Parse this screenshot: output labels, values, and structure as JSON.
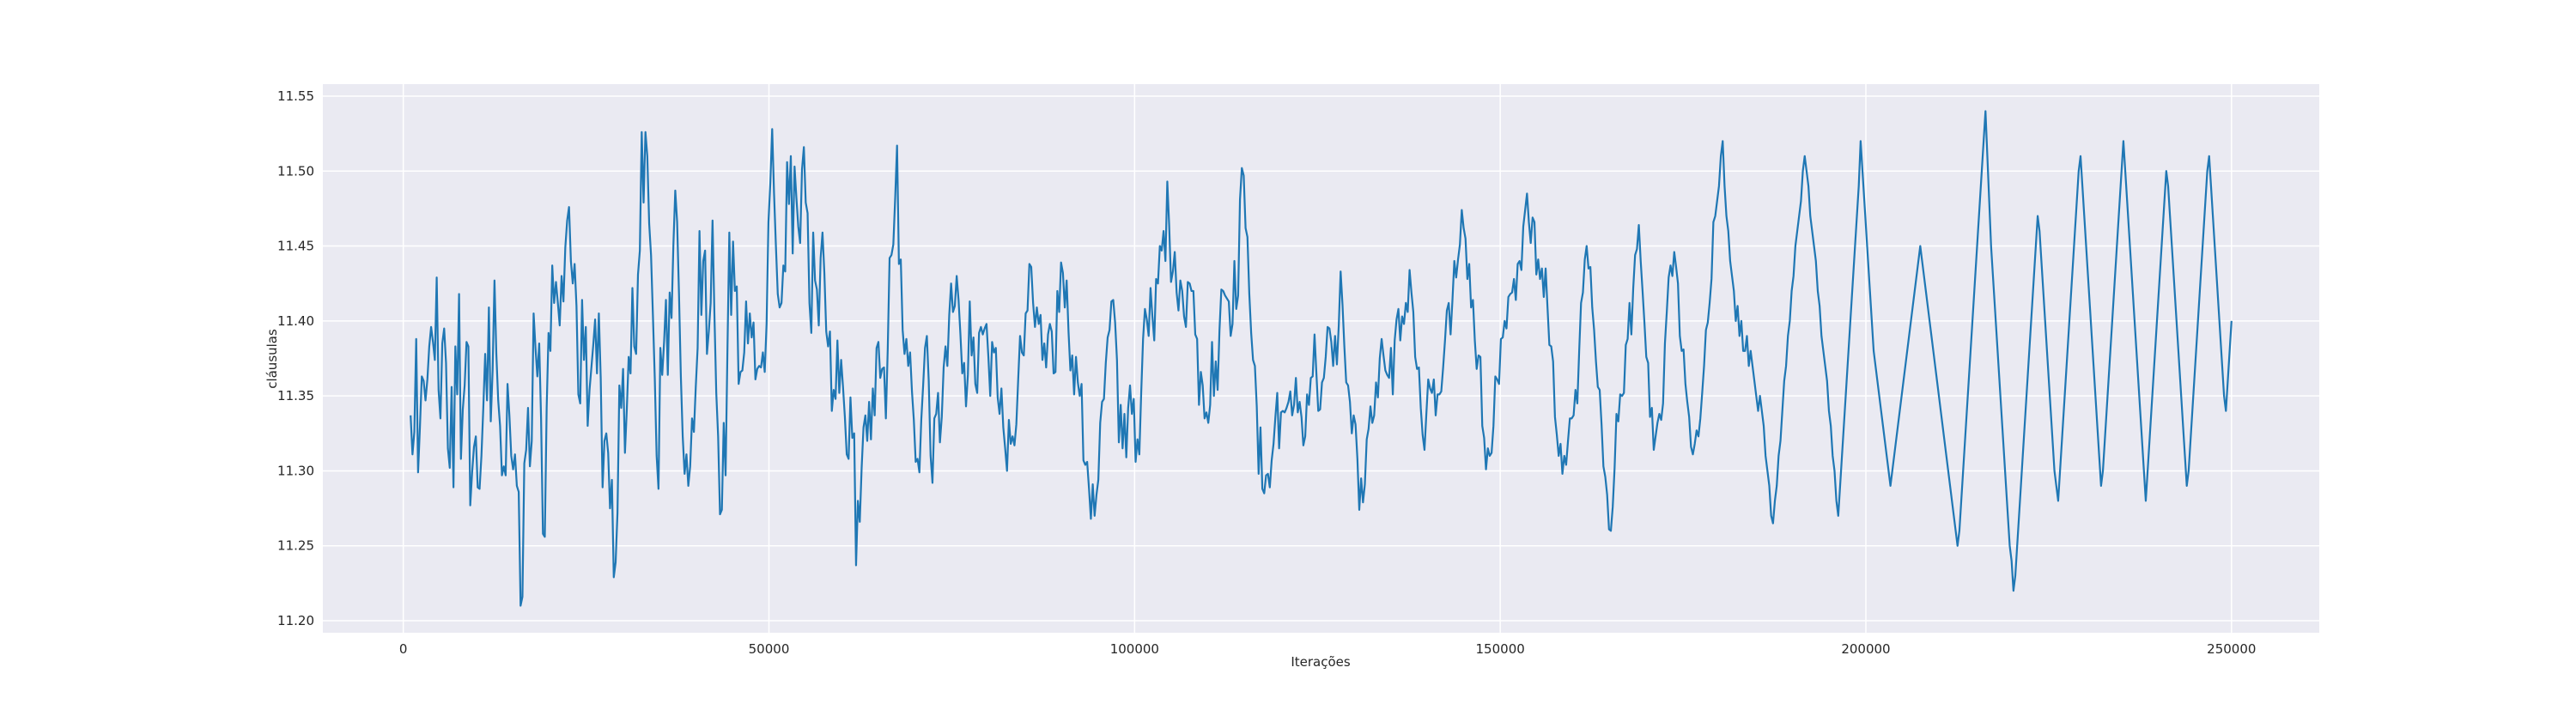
{
  "chart_data": {
    "type": "line",
    "title": "",
    "xlabel": "Iterações",
    "ylabel": "cláusulas",
    "xlim": [
      -11000,
      262000
    ],
    "ylim": [
      11.192,
      11.558
    ],
    "xticks": [
      0,
      50000,
      100000,
      150000,
      200000,
      250000
    ],
    "xtick_labels": [
      "0",
      "50000",
      "100000",
      "150000",
      "200000",
      "250000"
    ],
    "yticks": [
      11.2,
      11.25,
      11.3,
      11.35,
      11.4,
      11.45,
      11.5,
      11.55
    ],
    "ytick_labels": [
      "11.20",
      "11.25",
      "11.30",
      "11.35",
      "11.40",
      "11.45",
      "11.50",
      "11.55"
    ],
    "grid": true,
    "colors": {
      "background": "#eaeaf2",
      "grid": "#ffffff",
      "line": "#1f77b4"
    },
    "series": [
      {
        "x_start": 1000,
        "x_end": 250000,
        "x_step": 500,
        "values": [
          11.337,
          11.311,
          11.326,
          11.388,
          11.299,
          11.329,
          11.363,
          11.36,
          11.347,
          11.361,
          11.383,
          11.396,
          11.386,
          11.374,
          11.429,
          11.354,
          11.335,
          11.385,
          11.395,
          11.372,
          11.315,
          11.302,
          11.356,
          11.289,
          11.383,
          11.351,
          11.418,
          11.308,
          11.341,
          11.357,
          11.386,
          11.383,
          11.277,
          11.299,
          11.316,
          11.323,
          11.289,
          11.288,
          11.31,
          11.342,
          11.378,
          11.347,
          11.409,
          11.333,
          11.367,
          11.427,
          11.378,
          11.347,
          11.33,
          11.297,
          11.303,
          11.297,
          11.358,
          11.337,
          11.31,
          11.301,
          11.311,
          11.29,
          11.286,
          11.21,
          11.216,
          11.305,
          11.314,
          11.342,
          11.303,
          11.32,
          11.405,
          11.382,
          11.363,
          11.385,
          11.335,
          11.258,
          11.256,
          11.342,
          11.392,
          11.38,
          11.437,
          11.412,
          11.426,
          11.412,
          11.397,
          11.43,
          11.413,
          11.449,
          11.467,
          11.476,
          11.44,
          11.425,
          11.438,
          11.41,
          11.351,
          11.345,
          11.414,
          11.374,
          11.396,
          11.33,
          11.354,
          11.369,
          11.384,
          11.401,
          11.365,
          11.405,
          11.362,
          11.289,
          11.32,
          11.325,
          11.312,
          11.275,
          11.294,
          11.229,
          11.239,
          11.272,
          11.357,
          11.342,
          11.368,
          11.312,
          11.341,
          11.376,
          11.365,
          11.422,
          11.383,
          11.378,
          11.431,
          11.447,
          11.526,
          11.479,
          11.526,
          11.51,
          11.465,
          11.444,
          11.404,
          11.362,
          11.31,
          11.288,
          11.382,
          11.364,
          11.386,
          11.414,
          11.364,
          11.419,
          11.402,
          11.451,
          11.487,
          11.466,
          11.418,
          11.363,
          11.323,
          11.298,
          11.311,
          11.29,
          11.303,
          11.335,
          11.326,
          11.356,
          11.382,
          11.46,
          11.404,
          11.44,
          11.447,
          11.378,
          11.393,
          11.412,
          11.467,
          11.405,
          11.352,
          11.323,
          11.271,
          11.274,
          11.332,
          11.297,
          11.381,
          11.459,
          11.404,
          11.453,
          11.42,
          11.423,
          11.358,
          11.366,
          11.367,
          11.379,
          11.413,
          11.385,
          11.405,
          11.389,
          11.399,
          11.361,
          11.368,
          11.37,
          11.369,
          11.379,
          11.366,
          11.398,
          11.466,
          11.492,
          11.528,
          11.485,
          11.45,
          11.418,
          11.409,
          11.412,
          11.437,
          11.433,
          11.506,
          11.478,
          11.51,
          11.445,
          11.503,
          11.482,
          11.463,
          11.452,
          11.501,
          11.516,
          11.479,
          11.472,
          11.412,
          11.392,
          11.459,
          11.427,
          11.421,
          11.397,
          11.442,
          11.459,
          11.432,
          11.393,
          11.383,
          11.393,
          11.34,
          11.354,
          11.348,
          11.387,
          11.352,
          11.374,
          11.356,
          11.336,
          11.311,
          11.308,
          11.349,
          11.322,
          11.325,
          11.237,
          11.28,
          11.266,
          11.302,
          11.329,
          11.337,
          11.32,
          11.346,
          11.321,
          11.355,
          11.337,
          11.382,
          11.386,
          11.362,
          11.368,
          11.369,
          11.335,
          11.381,
          11.442,
          11.444,
          11.451,
          11.482,
          11.517,
          11.438,
          11.441,
          11.394,
          11.378,
          11.388,
          11.37,
          11.379,
          11.353,
          11.334,
          11.306,
          11.308,
          11.299,
          11.334,
          11.357,
          11.382,
          11.39,
          11.36,
          11.31,
          11.292,
          11.335,
          11.338,
          11.352,
          11.319,
          11.336,
          11.369,
          11.383,
          11.37,
          11.404,
          11.425,
          11.406,
          11.41,
          11.43,
          11.414,
          11.391,
          11.365,
          11.372,
          11.343,
          11.364,
          11.413,
          11.377,
          11.389,
          11.358,
          11.352,
          11.392,
          11.396,
          11.391,
          11.395,
          11.398,
          11.376,
          11.35,
          11.386,
          11.379,
          11.382,
          11.349,
          11.338,
          11.355,
          11.329,
          11.315,
          11.3,
          11.334,
          11.318,
          11.323,
          11.317,
          11.331,
          11.361,
          11.39,
          11.379,
          11.377,
          11.405,
          11.407,
          11.438,
          11.436,
          11.412,
          11.396,
          11.409,
          11.398,
          11.404,
          11.374,
          11.385,
          11.369,
          11.391,
          11.398,
          11.393,
          11.365,
          11.366,
          11.42,
          11.406,
          11.439,
          11.432,
          11.409,
          11.427,
          11.393,
          11.367,
          11.377,
          11.351,
          11.376,
          11.359,
          11.35,
          11.358,
          11.307,
          11.304,
          11.306,
          11.288,
          11.268,
          11.291,
          11.27,
          11.284,
          11.294,
          11.332,
          11.346,
          11.348,
          11.372,
          11.389,
          11.394,
          11.413,
          11.414,
          11.399,
          11.374,
          11.319,
          11.344,
          11.315,
          11.338,
          11.309,
          11.342,
          11.357,
          11.338,
          11.348,
          11.306,
          11.321,
          11.311,
          11.352,
          11.388,
          11.408,
          11.401,
          11.39,
          11.422,
          11.403,
          11.387,
          11.428,
          11.425,
          11.45,
          11.447,
          11.46,
          11.44,
          11.493,
          11.464,
          11.426,
          11.433,
          11.446,
          11.419,
          11.407,
          11.427,
          11.42,
          11.403,
          11.396,
          11.426,
          11.425,
          11.42,
          11.42,
          11.391,
          11.388,
          11.344,
          11.366,
          11.357,
          11.335,
          11.339,
          11.332,
          11.344,
          11.386,
          11.35,
          11.373,
          11.354,
          11.394,
          11.421,
          11.42,
          11.417,
          11.415,
          11.413,
          11.39,
          11.398,
          11.44,
          11.408,
          11.417,
          11.481,
          11.502,
          11.497,
          11.462,
          11.456,
          11.418,
          11.392,
          11.374,
          11.37,
          11.343,
          11.298,
          11.329,
          11.288,
          11.285,
          11.297,
          11.298,
          11.289,
          11.307,
          11.318,
          11.336,
          11.352,
          11.315,
          11.339,
          11.34,
          11.339,
          11.342,
          11.346,
          11.353,
          11.337,
          11.344,
          11.362,
          11.339,
          11.346,
          11.336,
          11.317,
          11.323,
          11.351,
          11.344,
          11.362,
          11.363,
          11.391,
          11.365,
          11.34,
          11.341,
          11.359,
          11.362,
          11.376,
          11.396,
          11.395,
          11.386,
          11.37,
          11.39,
          11.371,
          11.397,
          11.433,
          11.411,
          11.383,
          11.359,
          11.357,
          11.346,
          11.325,
          11.337,
          11.331,
          11.308,
          11.274,
          11.295,
          11.279,
          11.291,
          11.321,
          11.328,
          11.343,
          11.332,
          11.337,
          11.359,
          11.349,
          11.375,
          11.388,
          11.377,
          11.367,
          11.364,
          11.362,
          11.382,
          11.351,
          11.387,
          11.401,
          11.408,
          11.387,
          11.403,
          11.398,
          11.412,
          11.406,
          11.434,
          11.419,
          11.406,
          11.376,
          11.368,
          11.369,
          11.342,
          11.324,
          11.314,
          11.338,
          11.361,
          11.355,
          11.352,
          11.361,
          11.337,
          11.351,
          11.351,
          11.353,
          11.369,
          11.387,
          11.407,
          11.412,
          11.391,
          11.414,
          11.44,
          11.429,
          11.441,
          11.451,
          11.474,
          11.462,
          11.455,
          11.428,
          11.438,
          11.409,
          11.414,
          11.387,
          11.368,
          11.377,
          11.376,
          11.33,
          11.322,
          11.301,
          11.315,
          11.31,
          11.312,
          11.33,
          11.363,
          11.361,
          11.358,
          11.388,
          11.389,
          11.4,
          11.395,
          11.416,
          11.418,
          11.419,
          11.428,
          11.414,
          11.438,
          11.44,
          11.434,
          11.463,
          11.474,
          11.485,
          11.466,
          11.452,
          11.469,
          11.466,
          11.431,
          11.441,
          11.428,
          11.435,
          11.416,
          11.435,
          11.409,
          11.384,
          11.383,
          11.373,
          11.336,
          11.324,
          11.31,
          11.318,
          11.298,
          11.31,
          11.304,
          11.32,
          11.335,
          11.335,
          11.337,
          11.354,
          11.345,
          11.38,
          11.412,
          11.419,
          11.441,
          11.45,
          11.435,
          11.436,
          11.409,
          11.394,
          11.373,
          11.356,
          11.354,
          11.331,
          11.303,
          11.296,
          11.284,
          11.261,
          11.26,
          11.276,
          11.302,
          11.338,
          11.333,
          11.351,
          11.35,
          11.352,
          11.384,
          11.388,
          11.412,
          11.391,
          11.422,
          11.444,
          11.448,
          11.464,
          11.44,
          11.42,
          11.399,
          11.376,
          11.372,
          11.336,
          11.342,
          11.314,
          11.323,
          11.332,
          11.338,
          11.334,
          11.345,
          11.385,
          11.406,
          11.429,
          11.437,
          11.43,
          11.446,
          11.436,
          11.425,
          11.39,
          11.38,
          11.381,
          11.358,
          11.346,
          11.336,
          11.316,
          11.311,
          11.318,
          11.327,
          11.323,
          11.335,
          11.352,
          11.37,
          11.394,
          11.399,
          11.412,
          11.428,
          11.466,
          11.47,
          11.48,
          11.49,
          11.51,
          11.52,
          11.49,
          11.47,
          11.46,
          11.44,
          11.43,
          11.42,
          11.4,
          11.41,
          11.39,
          11.4,
          11.38,
          11.38,
          11.39,
          11.37,
          11.38,
          11.37,
          11.36,
          11.35,
          11.34,
          11.35,
          11.34,
          11.33,
          11.31,
          11.3,
          11.29,
          11.27,
          11.265,
          11.28,
          11.29,
          11.31,
          11.32,
          11.34,
          11.36,
          11.37,
          11.39,
          11.4,
          11.42,
          11.43,
          11.45,
          11.46,
          11.47,
          11.48,
          11.5,
          11.51,
          11.5,
          11.49,
          11.47,
          11.46,
          11.45,
          11.44,
          11.42,
          11.41,
          11.39,
          11.38,
          11.37,
          11.36,
          11.34,
          11.33,
          11.31,
          11.3,
          11.28,
          11.27,
          11.29,
          11.31,
          11.33,
          11.35,
          11.37,
          11.39,
          11.41,
          11.43,
          11.45,
          11.47,
          11.49,
          11.52,
          11.5,
          11.48,
          11.46,
          11.44,
          11.42,
          11.4,
          11.38,
          11.37,
          11.36,
          11.35,
          11.34,
          11.33,
          11.32,
          11.31,
          11.3,
          11.29,
          11.3,
          11.31,
          11.32,
          11.33,
          11.34,
          11.35,
          11.36,
          11.37,
          11.38,
          11.39,
          11.4,
          11.41,
          11.42,
          11.43,
          11.44,
          11.45,
          11.44,
          11.43,
          11.42,
          11.41,
          11.4,
          11.39,
          11.38,
          11.37,
          11.36,
          11.35,
          11.34,
          11.33,
          11.32,
          11.31,
          11.3,
          11.29,
          11.28,
          11.27,
          11.26,
          11.25,
          11.26,
          11.28,
          11.3,
          11.32,
          11.34,
          11.36,
          11.38,
          11.4,
          11.42,
          11.44,
          11.46,
          11.48,
          11.5,
          11.52,
          11.54,
          11.51,
          11.48,
          11.45,
          11.43,
          11.41,
          11.39,
          11.37,
          11.35,
          11.33,
          11.31,
          11.29,
          11.27,
          11.25,
          11.24,
          11.22,
          11.23,
          11.25,
          11.27,
          11.29,
          11.31,
          11.33,
          11.35,
          11.37,
          11.39,
          11.41,
          11.43,
          11.45,
          11.47,
          11.46,
          11.44,
          11.42,
          11.4,
          11.38,
          11.36,
          11.34,
          11.32,
          11.3,
          11.29,
          11.28,
          11.3,
          11.32,
          11.34,
          11.36,
          11.38,
          11.4,
          11.42,
          11.44,
          11.46,
          11.48,
          11.5,
          11.51,
          11.49,
          11.47,
          11.45,
          11.43,
          11.41,
          11.39,
          11.37,
          11.35,
          11.33,
          11.31,
          11.29,
          11.3,
          11.32,
          11.34,
          11.36,
          11.38,
          11.4,
          11.42,
          11.44,
          11.46,
          11.48,
          11.5,
          11.52,
          11.5,
          11.48,
          11.46,
          11.44,
          11.42,
          11.4,
          11.38,
          11.36,
          11.34,
          11.32,
          11.3,
          11.28,
          11.3,
          11.32,
          11.34,
          11.36,
          11.38,
          11.4,
          11.42,
          11.44,
          11.46,
          11.48,
          11.5,
          11.49,
          11.47,
          11.45,
          11.43,
          11.41,
          11.39,
          11.37,
          11.35,
          11.33,
          11.31,
          11.29,
          11.3,
          11.32,
          11.34,
          11.36,
          11.38,
          11.4,
          11.42,
          11.44,
          11.46,
          11.48,
          11.5,
          11.51,
          11.49,
          11.47,
          11.45,
          11.43,
          11.41,
          11.39,
          11.37,
          11.35,
          11.34,
          11.36,
          11.38,
          11.4
        ]
      }
    ]
  }
}
